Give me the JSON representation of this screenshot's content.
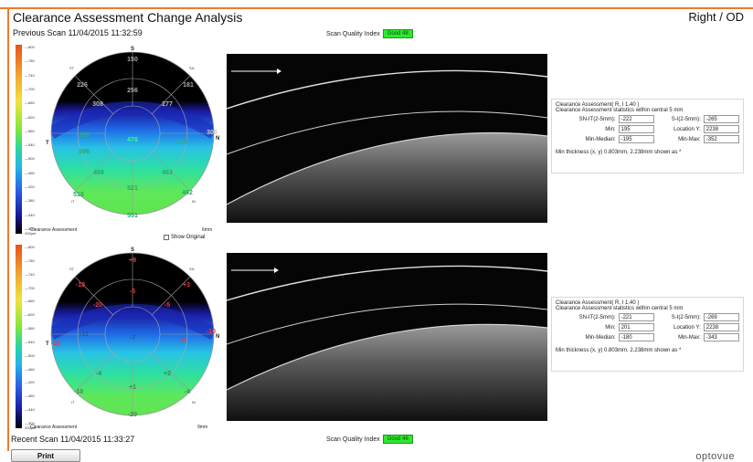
{
  "header": {
    "title": "Clearance Assessment Change Analysis",
    "eye": "Right / OD",
    "previous_scan": "Previous Scan 11/04/2015 11:32:59",
    "recent_scan": "Recent Scan 11/04/2015 11:33:27"
  },
  "quality": {
    "label": "Scan Quality Index",
    "top_value": "Good  48",
    "bottom_value": "Good  46"
  },
  "colorbar": {
    "ticks": [
      "800",
      "780",
      "740",
      "700",
      "660",
      "620",
      "580",
      "540",
      "500",
      "460",
      "420",
      "380",
      "340",
      "300"
    ],
    "units": "200µm"
  },
  "top_map": {
    "caption": "Clearance Assessment",
    "diameter": "6mm",
    "orientation": {
      "S": "S",
      "T": "T",
      "N": "N",
      "I": "I",
      "ST": "ST",
      "SN": "SN",
      "IT": "IT",
      "IN": "IN"
    },
    "values": [
      "150",
      "226",
      "256",
      "181",
      "308",
      "277",
      "309",
      "476",
      "399",
      "401",
      "506",
      "498",
      "463",
      "521",
      "518",
      "462",
      "551"
    ]
  },
  "bottom_map": {
    "caption": "Clearance Assessment",
    "diameter": "9mm",
    "orientation": {
      "S": "S",
      "T": "T",
      "N": "N",
      "I": "I",
      "ST": "ST",
      "SN": "SN",
      "IT": "IT",
      "IN": "IN"
    },
    "values": [
      "+9",
      "-18",
      "+3",
      "-5",
      "-20",
      "-5",
      "-10",
      "-16",
      "-11",
      "-7",
      "-8",
      "-4",
      "+2",
      "+1",
      "-10",
      "-4",
      "-20"
    ]
  },
  "show_original": "Show Original",
  "top_stats": {
    "title": "Clearance Assessment( R, I 1.40 )",
    "subtitle": "Clearance Assessment statistics within central 5 mm",
    "rows": [
      {
        "l1": "SN-IT(2-5mm):",
        "v1": "-222",
        "l2": "S-I(2-5mm):",
        "v2": "-265"
      },
      {
        "l1": "Min:",
        "v1": "195",
        "l2": "Location Y:",
        "v2": "2238"
      },
      {
        "l1": "Min-Median:",
        "v1": "-195",
        "l2": "Min-Max:",
        "v2": "-352"
      }
    ],
    "footer": "Min thickness (x, y) 0.803mm, 2.238mm shown as *"
  },
  "bottom_stats": {
    "title": "Clearance Assessment( R, I 1.40 )",
    "subtitle": "Clearance Assessment statistics within central 5 mm",
    "rows": [
      {
        "l1": "SN-IT(2-5mm):",
        "v1": "-221",
        "l2": "S-I(2-5mm):",
        "v2": "-269"
      },
      {
        "l1": "Min:",
        "v1": "201",
        "l2": "Location Y:",
        "v2": "2238"
      },
      {
        "l1": "Min-Median:",
        "v1": "-180",
        "l2": "Min-Max:",
        "v2": "-343"
      }
    ],
    "footer": "Min thickness (x, y) 0.803mm, 2.238mm shown as *"
  },
  "footer": {
    "print_label": "Print",
    "logo": "optovue"
  },
  "colors": {
    "frame": "#f07a2a",
    "quality_badge": "#2ee82e"
  }
}
